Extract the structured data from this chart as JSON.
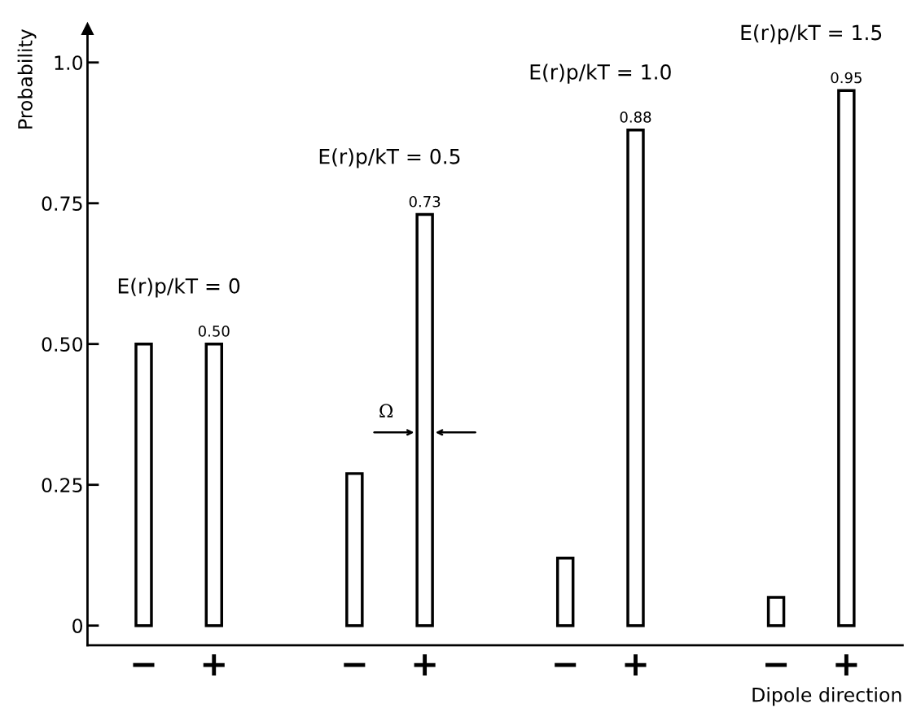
{
  "chart_data": {
    "type": "bar",
    "ylabel": "Probability",
    "xlabel": "Dipole direction",
    "categories": [
      "−",
      "+",
      null,
      "−",
      "+",
      null,
      "−",
      "+",
      null,
      "−",
      "+"
    ],
    "series": [
      {
        "color": "#000000",
        "values": [
          0.5,
          0.5,
          null,
          0.27,
          0.73,
          null,
          0.12,
          0.88,
          null,
          0.05,
          0.95
        ],
        "value_labels": [
          null,
          "0.50",
          null,
          null,
          "0.73",
          null,
          null,
          "0.88",
          null,
          null,
          "0.95"
        ]
      }
    ],
    "ylim": [
      -0.035,
      1.06
    ],
    "yticks": [
      0,
      0.25,
      {
        "value": 0.5,
        "label": "0.50"
      },
      0.75,
      {
        "value": 1.0,
        "label": "1.0"
      }
    ],
    "annotations": [
      "E(r)p/kT = 0",
      "E(r)p/kT = 0.5",
      "E(r)p/kT = 1.0",
      "E(r)p/kT = 1.5",
      "Ω"
    ],
    "grid": false,
    "legend": false
  }
}
